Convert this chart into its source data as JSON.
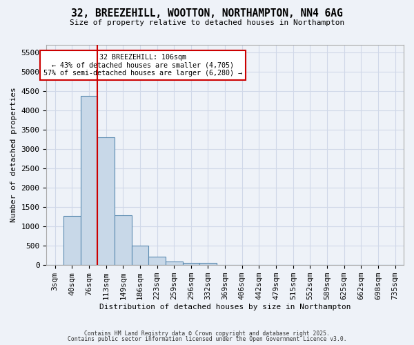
{
  "title": "32, BREEZEHILL, WOOTTON, NORTHAMPTON, NN4 6AG",
  "subtitle": "Size of property relative to detached houses in Northampton",
  "xlabel": "Distribution of detached houses by size in Northampton",
  "ylabel": "Number of detached properties",
  "bins": [
    "3sqm",
    "40sqm",
    "76sqm",
    "113sqm",
    "149sqm",
    "186sqm",
    "223sqm",
    "259sqm",
    "296sqm",
    "332sqm",
    "369sqm",
    "406sqm",
    "442sqm",
    "479sqm",
    "515sqm",
    "552sqm",
    "589sqm",
    "625sqm",
    "662sqm",
    "698sqm",
    "735sqm"
  ],
  "values": [
    0,
    1270,
    4380,
    3300,
    1290,
    500,
    210,
    90,
    60,
    60,
    0,
    0,
    0,
    0,
    0,
    0,
    0,
    0,
    0,
    0,
    0
  ],
  "bar_color": "#c8d8e8",
  "bar_edge_color": "#5a8ab0",
  "vline_pos": 2.5,
  "vline_color": "#cc0000",
  "annotation_text": "32 BREEZEHILL: 106sqm\n← 43% of detached houses are smaller (4,705)\n57% of semi-detached houses are larger (6,280) →",
  "annotation_box_color": "#ffffff",
  "annotation_box_edge": "#cc0000",
  "ylim": [
    0,
    5700
  ],
  "yticks": [
    0,
    500,
    1000,
    1500,
    2000,
    2500,
    3000,
    3500,
    4000,
    4500,
    5000,
    5500
  ],
  "grid_color": "#d0d8e8",
  "bg_color": "#eef2f8",
  "footer1": "Contains HM Land Registry data © Crown copyright and database right 2025.",
  "footer2": "Contains public sector information licensed under the Open Government Licence v3.0."
}
